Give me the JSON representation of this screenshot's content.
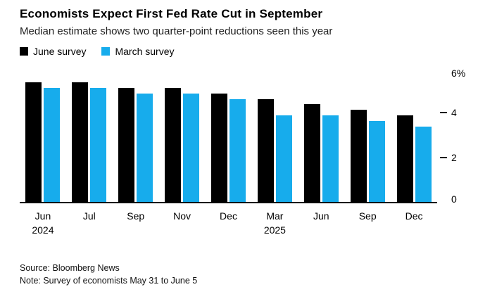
{
  "title": "Economists Expect First Fed Rate Cut in September",
  "subtitle": "Median estimate shows two quarter-point reductions seen this year",
  "legend": [
    {
      "label": "June survey",
      "color": "#000000"
    },
    {
      "label": "March survey",
      "color": "#17ACEC"
    }
  ],
  "footer": {
    "source": "Source: Bloomberg News",
    "note": "Note: Survey of economists May 31 to June 5"
  },
  "colors": {
    "june_survey": "#000000",
    "march_survey": "#17ACEC",
    "axis": "#000000"
  },
  "chart_data": {
    "type": "bar",
    "categories": [
      {
        "label": "Jun",
        "year": "2024"
      },
      {
        "label": "Jul",
        "year": ""
      },
      {
        "label": "Sep",
        "year": ""
      },
      {
        "label": "Nov",
        "year": ""
      },
      {
        "label": "Dec",
        "year": ""
      },
      {
        "label": "Mar",
        "year": "2025"
      },
      {
        "label": "Jun",
        "year": ""
      },
      {
        "label": "Sep",
        "year": ""
      },
      {
        "label": "Dec",
        "year": ""
      }
    ],
    "series": [
      {
        "name": "June survey",
        "color": "#000000",
        "values": [
          5.375,
          5.375,
          5.125,
          5.125,
          4.875,
          4.625,
          4.375,
          4.125,
          3.875
        ]
      },
      {
        "name": "March survey",
        "color": "#17ACEC",
        "values": [
          5.125,
          5.125,
          4.875,
          4.875,
          4.625,
          3.875,
          3.875,
          3.625,
          3.375
        ]
      }
    ],
    "ylabel": "%",
    "xlabel": "",
    "ylim": [
      0,
      6
    ],
    "yticks": [
      {
        "value": 6,
        "label": "6%",
        "dash": false
      },
      {
        "value": 4,
        "label": "4",
        "dash": true
      },
      {
        "value": 2,
        "label": "2",
        "dash": true
      },
      {
        "value": 0,
        "label": "0",
        "dash": false
      }
    ],
    "grid": false,
    "legend_position": "top-left"
  }
}
